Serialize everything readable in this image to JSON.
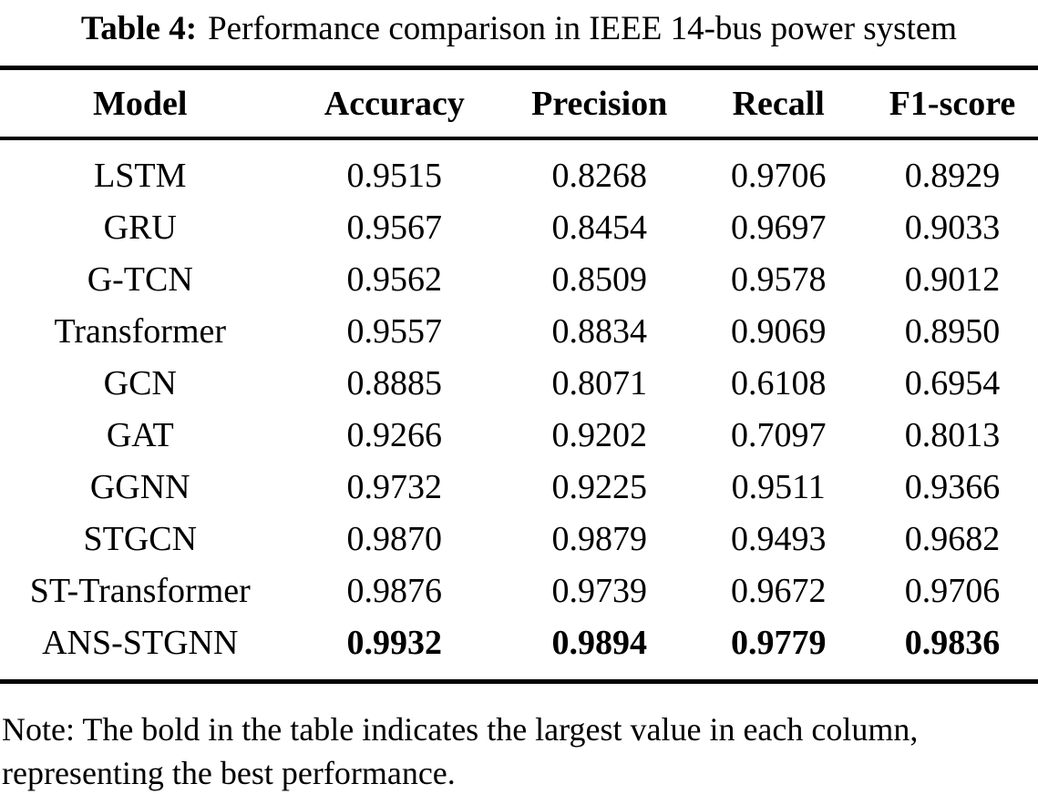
{
  "caption": {
    "label": "Table 4:",
    "text": "Performance comparison in IEEE 14-bus power system"
  },
  "table": {
    "columns": [
      "Model",
      "Accuracy",
      "Precision",
      "Recall",
      "F1-score"
    ],
    "rows": [
      {
        "model": "LSTM",
        "values": [
          "0.9515",
          "0.8268",
          "0.9706",
          "0.8929"
        ],
        "bold_values": false
      },
      {
        "model": "GRU",
        "values": [
          "0.9567",
          "0.8454",
          "0.9697",
          "0.9033"
        ],
        "bold_values": false
      },
      {
        "model": "G-TCN",
        "values": [
          "0.9562",
          "0.8509",
          "0.9578",
          "0.9012"
        ],
        "bold_values": false
      },
      {
        "model": "Transformer",
        "values": [
          "0.9557",
          "0.8834",
          "0.9069",
          "0.8950"
        ],
        "bold_values": false
      },
      {
        "model": "GCN",
        "values": [
          "0.8885",
          "0.8071",
          "0.6108",
          "0.6954"
        ],
        "bold_values": false
      },
      {
        "model": "GAT",
        "values": [
          "0.9266",
          "0.9202",
          "0.7097",
          "0.8013"
        ],
        "bold_values": false
      },
      {
        "model": "GGNN",
        "values": [
          "0.9732",
          "0.9225",
          "0.9511",
          "0.9366"
        ],
        "bold_values": false
      },
      {
        "model": "STGCN",
        "values": [
          "0.9870",
          "0.9879",
          "0.9493",
          "0.9682"
        ],
        "bold_values": false
      },
      {
        "model": "ST-Transformer",
        "values": [
          "0.9876",
          "0.9739",
          "0.9672",
          "0.9706"
        ],
        "bold_values": false
      },
      {
        "model": "ANS-STGNN",
        "values": [
          "0.9932",
          "0.9894",
          "0.9779",
          "0.9836"
        ],
        "bold_values": true
      }
    ]
  },
  "note": {
    "line1": "Note: The bold in the table indicates the largest value in each column,",
    "line2": "representing the best performance."
  }
}
